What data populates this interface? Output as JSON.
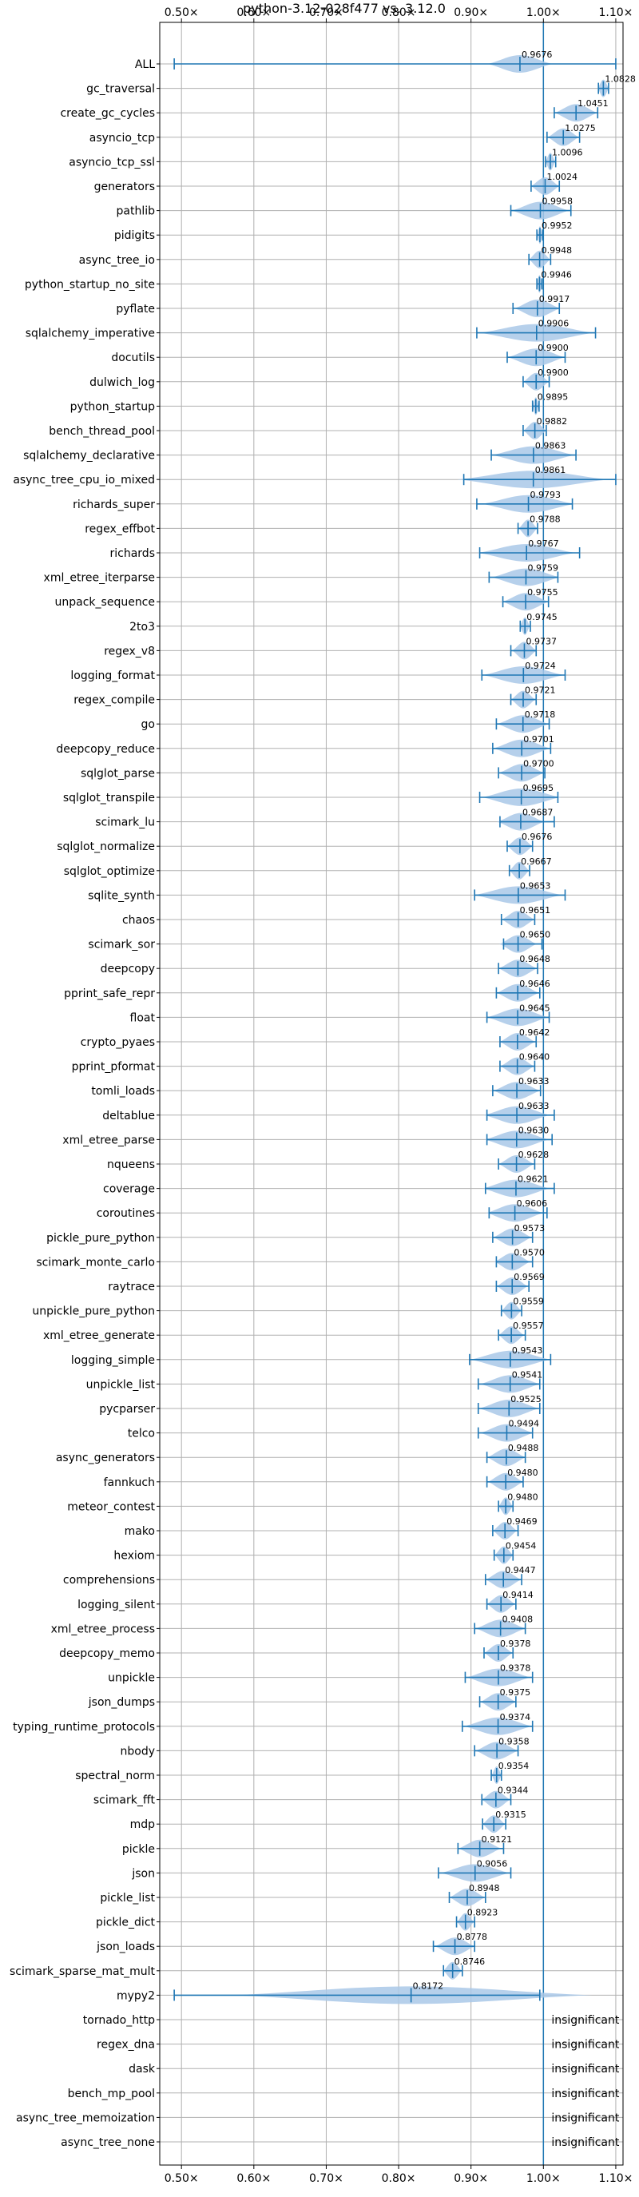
{
  "chart_data": {
    "type": "violin",
    "title": "python-3.12-028f477 vs. 3.12.0",
    "xlabel": "",
    "ylabel": "",
    "xlim": [
      0.47,
      1.11
    ],
    "x_ticks": [
      {
        "value": 0.5,
        "label": "0.50×"
      },
      {
        "value": 0.6,
        "label": "0.60×"
      },
      {
        "value": 0.7,
        "label": "0.70×"
      },
      {
        "value": 0.8,
        "label": "0.80×"
      },
      {
        "value": 0.9,
        "label": "0.90×"
      },
      {
        "value": 1.0,
        "label": "1.00×"
      },
      {
        "value": 1.1,
        "label": "1.10×"
      }
    ],
    "x_ticks_top_and_bottom": true,
    "grid": true,
    "reference_line": 1.0,
    "colors": {
      "violin": "#a9c8e8",
      "whisker": "#1f77b4",
      "reference": "#1f77b4",
      "grid": "#b0b0b0"
    },
    "insignificant_label": "insignificant",
    "benchmarks": [
      {
        "name": "ALL",
        "value": 0.9676,
        "label": "0.9676",
        "min": 0.49,
        "max": 1.1,
        "spread": 0.045
      },
      {
        "name": "gc_traversal",
        "value": 1.0828,
        "label": "1.0828",
        "min": 1.076,
        "max": 1.09,
        "spread": 0.008
      },
      {
        "name": "create_gc_cycles",
        "value": 1.0451,
        "label": "1.0451",
        "min": 1.015,
        "max": 1.075,
        "spread": 0.03
      },
      {
        "name": "asyncio_tcp",
        "value": 1.0275,
        "label": "1.0275",
        "min": 1.005,
        "max": 1.05,
        "spread": 0.022
      },
      {
        "name": "asyncio_tcp_ssl",
        "value": 1.0096,
        "label": "1.0096",
        "min": 1.003,
        "max": 1.017,
        "spread": 0.007
      },
      {
        "name": "generators",
        "value": 1.0024,
        "label": "1.0024",
        "min": 0.983,
        "max": 1.022,
        "spread": 0.02
      },
      {
        "name": "pathlib",
        "value": 0.9958,
        "label": "0.9958",
        "min": 0.955,
        "max": 1.038,
        "spread": 0.04
      },
      {
        "name": "pidigits",
        "value": 0.9952,
        "label": "0.9952",
        "min": 0.991,
        "max": 0.999,
        "spread": 0.004
      },
      {
        "name": "async_tree_io",
        "value": 0.9948,
        "label": "0.9948",
        "min": 0.98,
        "max": 1.01,
        "spread": 0.015
      },
      {
        "name": "python_startup_no_site",
        "value": 0.9946,
        "label": "0.9946",
        "min": 0.991,
        "max": 0.998,
        "spread": 0.004
      },
      {
        "name": "pyflate",
        "value": 0.9917,
        "label": "0.9917",
        "min": 0.958,
        "max": 1.022,
        "spread": 0.032
      },
      {
        "name": "sqlalchemy_imperative",
        "value": 0.9906,
        "label": "0.9906",
        "min": 0.908,
        "max": 1.072,
        "spread": 0.08
      },
      {
        "name": "docutils",
        "value": 0.99,
        "label": "0.9900",
        "min": 0.95,
        "max": 1.03,
        "spread": 0.04
      },
      {
        "name": "dulwich_log",
        "value": 0.99,
        "label": "0.9900",
        "min": 0.972,
        "max": 1.008,
        "spread": 0.018
      },
      {
        "name": "python_startup",
        "value": 0.9895,
        "label": "0.9895",
        "min": 0.985,
        "max": 0.994,
        "spread": 0.005
      },
      {
        "name": "bench_thread_pool",
        "value": 0.9882,
        "label": "0.9882",
        "min": 0.972,
        "max": 1.004,
        "spread": 0.016
      },
      {
        "name": "sqlalchemy_declarative",
        "value": 0.9863,
        "label": "0.9863",
        "min": 0.928,
        "max": 1.045,
        "spread": 0.058
      },
      {
        "name": "async_tree_cpu_io_mixed",
        "value": 0.9861,
        "label": "0.9861",
        "min": 0.89,
        "max": 1.1,
        "spread": 0.105
      },
      {
        "name": "richards_super",
        "value": 0.9793,
        "label": "0.9793",
        "min": 0.908,
        "max": 1.04,
        "spread": 0.065
      },
      {
        "name": "regex_effbot",
        "value": 0.9788,
        "label": "0.9788",
        "min": 0.965,
        "max": 0.992,
        "spread": 0.013
      },
      {
        "name": "richards",
        "value": 0.9767,
        "label": "0.9767",
        "min": 0.912,
        "max": 1.05,
        "spread": 0.068
      },
      {
        "name": "xml_etree_iterparse",
        "value": 0.9759,
        "label": "0.9759",
        "min": 0.925,
        "max": 1.02,
        "spread": 0.048
      },
      {
        "name": "unpack_sequence",
        "value": 0.9755,
        "label": "0.9755",
        "min": 0.944,
        "max": 1.007,
        "spread": 0.032
      },
      {
        "name": "2to3",
        "value": 0.9745,
        "label": "0.9745",
        "min": 0.968,
        "max": 0.982,
        "spread": 0.007
      },
      {
        "name": "regex_v8",
        "value": 0.9737,
        "label": "0.9737",
        "min": 0.955,
        "max": 0.99,
        "spread": 0.017
      },
      {
        "name": "logging_format",
        "value": 0.9724,
        "label": "0.9724",
        "min": 0.915,
        "max": 1.03,
        "spread": 0.057
      },
      {
        "name": "regex_compile",
        "value": 0.9721,
        "label": "0.9721",
        "min": 0.955,
        "max": 0.99,
        "spread": 0.017
      },
      {
        "name": "go",
        "value": 0.9718,
        "label": "0.9718",
        "min": 0.935,
        "max": 1.008,
        "spread": 0.036
      },
      {
        "name": "deepcopy_reduce",
        "value": 0.9701,
        "label": "0.9701",
        "min": 0.93,
        "max": 1.01,
        "spread": 0.04
      },
      {
        "name": "sqlglot_parse",
        "value": 0.97,
        "label": "0.9700",
        "min": 0.938,
        "max": 1.002,
        "spread": 0.032
      },
      {
        "name": "sqlglot_transpile",
        "value": 0.9695,
        "label": "0.9695",
        "min": 0.912,
        "max": 1.02,
        "spread": 0.055
      },
      {
        "name": "scimark_lu",
        "value": 0.9687,
        "label": "0.9687",
        "min": 0.94,
        "max": 1.015,
        "spread": 0.033
      },
      {
        "name": "sqlglot_normalize",
        "value": 0.9676,
        "label": "0.9676",
        "min": 0.95,
        "max": 0.985,
        "spread": 0.018
      },
      {
        "name": "sqlglot_optimize",
        "value": 0.9667,
        "label": "0.9667",
        "min": 0.953,
        "max": 0.981,
        "spread": 0.014
      },
      {
        "name": "sqlite_synth",
        "value": 0.9653,
        "label": "0.9653",
        "min": 0.905,
        "max": 1.03,
        "spread": 0.062
      },
      {
        "name": "chaos",
        "value": 0.9651,
        "label": "0.9651",
        "min": 0.942,
        "max": 0.988,
        "spread": 0.023
      },
      {
        "name": "scimark_sor",
        "value": 0.965,
        "label": "0.9650",
        "min": 0.945,
        "max": 0.998,
        "spread": 0.026
      },
      {
        "name": "deepcopy",
        "value": 0.9648,
        "label": "0.9648",
        "min": 0.938,
        "max": 0.992,
        "spread": 0.027
      },
      {
        "name": "pprint_safe_repr",
        "value": 0.9646,
        "label": "0.9646",
        "min": 0.935,
        "max": 0.995,
        "spread": 0.03
      },
      {
        "name": "float",
        "value": 0.9645,
        "label": "0.9645",
        "min": 0.922,
        "max": 1.008,
        "spread": 0.043
      },
      {
        "name": "crypto_pyaes",
        "value": 0.9642,
        "label": "0.9642",
        "min": 0.94,
        "max": 0.99,
        "spread": 0.025
      },
      {
        "name": "pprint_pformat",
        "value": 0.964,
        "label": "0.9640",
        "min": 0.94,
        "max": 0.988,
        "spread": 0.024
      },
      {
        "name": "tomli_loads",
        "value": 0.9633,
        "label": "0.9633",
        "min": 0.93,
        "max": 0.996,
        "spread": 0.033
      },
      {
        "name": "deltablue",
        "value": 0.9633,
        "label": "0.9633",
        "min": 0.922,
        "max": 1.015,
        "spread": 0.046
      },
      {
        "name": "xml_etree_parse",
        "value": 0.963,
        "label": "0.9630",
        "min": 0.922,
        "max": 1.012,
        "spread": 0.045
      },
      {
        "name": "nqueens",
        "value": 0.9628,
        "label": "0.9628",
        "min": 0.938,
        "max": 0.988,
        "spread": 0.025
      },
      {
        "name": "coverage",
        "value": 0.9621,
        "label": "0.9621",
        "min": 0.92,
        "max": 1.015,
        "spread": 0.047
      },
      {
        "name": "coroutines",
        "value": 0.9606,
        "label": "0.9606",
        "min": 0.925,
        "max": 1.005,
        "spread": 0.04
      },
      {
        "name": "pickle_pure_python",
        "value": 0.9573,
        "label": "0.9573",
        "min": 0.93,
        "max": 0.985,
        "spread": 0.027
      },
      {
        "name": "scimark_monte_carlo",
        "value": 0.957,
        "label": "0.9570",
        "min": 0.935,
        "max": 0.985,
        "spread": 0.025
      },
      {
        "name": "raytrace",
        "value": 0.9569,
        "label": "0.9569",
        "min": 0.935,
        "max": 0.98,
        "spread": 0.022
      },
      {
        "name": "unpickle_pure_python",
        "value": 0.9559,
        "label": "0.9559",
        "min": 0.942,
        "max": 0.97,
        "spread": 0.014
      },
      {
        "name": "xml_etree_generate",
        "value": 0.9557,
        "label": "0.9557",
        "min": 0.938,
        "max": 0.975,
        "spread": 0.018
      },
      {
        "name": "logging_simple",
        "value": 0.9543,
        "label": "0.9543",
        "min": 0.898,
        "max": 1.01,
        "spread": 0.056
      },
      {
        "name": "unpickle_list",
        "value": 0.9541,
        "label": "0.9541",
        "min": 0.91,
        "max": 0.995,
        "spread": 0.042
      },
      {
        "name": "pycparser",
        "value": 0.9525,
        "label": "0.9525",
        "min": 0.91,
        "max": 0.995,
        "spread": 0.042
      },
      {
        "name": "telco",
        "value": 0.9494,
        "label": "0.9494",
        "min": 0.91,
        "max": 0.985,
        "spread": 0.037
      },
      {
        "name": "async_generators",
        "value": 0.9488,
        "label": "0.9488",
        "min": 0.922,
        "max": 0.975,
        "spread": 0.027
      },
      {
        "name": "fannkuch",
        "value": 0.948,
        "label": "0.9480",
        "min": 0.922,
        "max": 0.972,
        "spread": 0.025
      },
      {
        "name": "meteor_contest",
        "value": 0.948,
        "label": "0.9480",
        "min": 0.938,
        "max": 0.958,
        "spread": 0.01
      },
      {
        "name": "mako",
        "value": 0.9469,
        "label": "0.9469",
        "min": 0.93,
        "max": 0.965,
        "spread": 0.017
      },
      {
        "name": "hexiom",
        "value": 0.9454,
        "label": "0.9454",
        "min": 0.932,
        "max": 0.958,
        "spread": 0.013
      },
      {
        "name": "comprehensions",
        "value": 0.9447,
        "label": "0.9447",
        "min": 0.92,
        "max": 0.97,
        "spread": 0.025
      },
      {
        "name": "logging_silent",
        "value": 0.9414,
        "label": "0.9414",
        "min": 0.922,
        "max": 0.962,
        "spread": 0.02
      },
      {
        "name": "xml_etree_process",
        "value": 0.9408,
        "label": "0.9408",
        "min": 0.905,
        "max": 0.975,
        "spread": 0.035
      },
      {
        "name": "deepcopy_memo",
        "value": 0.9378,
        "label": "0.9378",
        "min": 0.918,
        "max": 0.958,
        "spread": 0.02
      },
      {
        "name": "unpickle",
        "value": 0.9378,
        "label": "0.9378",
        "min": 0.892,
        "max": 0.985,
        "spread": 0.045
      },
      {
        "name": "json_dumps",
        "value": 0.9375,
        "label": "0.9375",
        "min": 0.912,
        "max": 0.962,
        "spread": 0.025
      },
      {
        "name": "typing_runtime_protocols",
        "value": 0.9374,
        "label": "0.9374",
        "min": 0.888,
        "max": 0.985,
        "spread": 0.048
      },
      {
        "name": "nbody",
        "value": 0.9358,
        "label": "0.9358",
        "min": 0.905,
        "max": 0.965,
        "spread": 0.03
      },
      {
        "name": "spectral_norm",
        "value": 0.9354,
        "label": "0.9354",
        "min": 0.928,
        "max": 0.942,
        "spread": 0.007
      },
      {
        "name": "scimark_fft",
        "value": 0.9344,
        "label": "0.9344",
        "min": 0.915,
        "max": 0.955,
        "spread": 0.02
      },
      {
        "name": "mdp",
        "value": 0.9315,
        "label": "0.9315",
        "min": 0.916,
        "max": 0.948,
        "spread": 0.016
      },
      {
        "name": "pickle",
        "value": 0.9121,
        "label": "0.9121",
        "min": 0.882,
        "max": 0.945,
        "spread": 0.03
      },
      {
        "name": "json",
        "value": 0.9056,
        "label": "0.9056",
        "min": 0.855,
        "max": 0.955,
        "spread": 0.048
      },
      {
        "name": "pickle_list",
        "value": 0.8948,
        "label": "0.8948",
        "min": 0.87,
        "max": 0.92,
        "spread": 0.025
      },
      {
        "name": "pickle_dict",
        "value": 0.8923,
        "label": "0.8923",
        "min": 0.88,
        "max": 0.905,
        "spread": 0.012
      },
      {
        "name": "json_loads",
        "value": 0.8778,
        "label": "0.8778",
        "min": 0.848,
        "max": 0.905,
        "spread": 0.028
      },
      {
        "name": "scimark_sparse_mat_mult",
        "value": 0.8746,
        "label": "0.8746",
        "min": 0.862,
        "max": 0.888,
        "spread": 0.013
      },
      {
        "name": "mypy2",
        "value": 0.8172,
        "label": "0.8172",
        "min": 0.49,
        "max": 0.995,
        "spread": 0.25
      },
      {
        "name": "tornado_http",
        "insignificant": true
      },
      {
        "name": "regex_dna",
        "insignificant": true
      },
      {
        "name": "dask",
        "insignificant": true
      },
      {
        "name": "bench_mp_pool",
        "insignificant": true
      },
      {
        "name": "async_tree_memoization",
        "insignificant": true
      },
      {
        "name": "async_tree_none",
        "insignificant": true
      }
    ]
  }
}
